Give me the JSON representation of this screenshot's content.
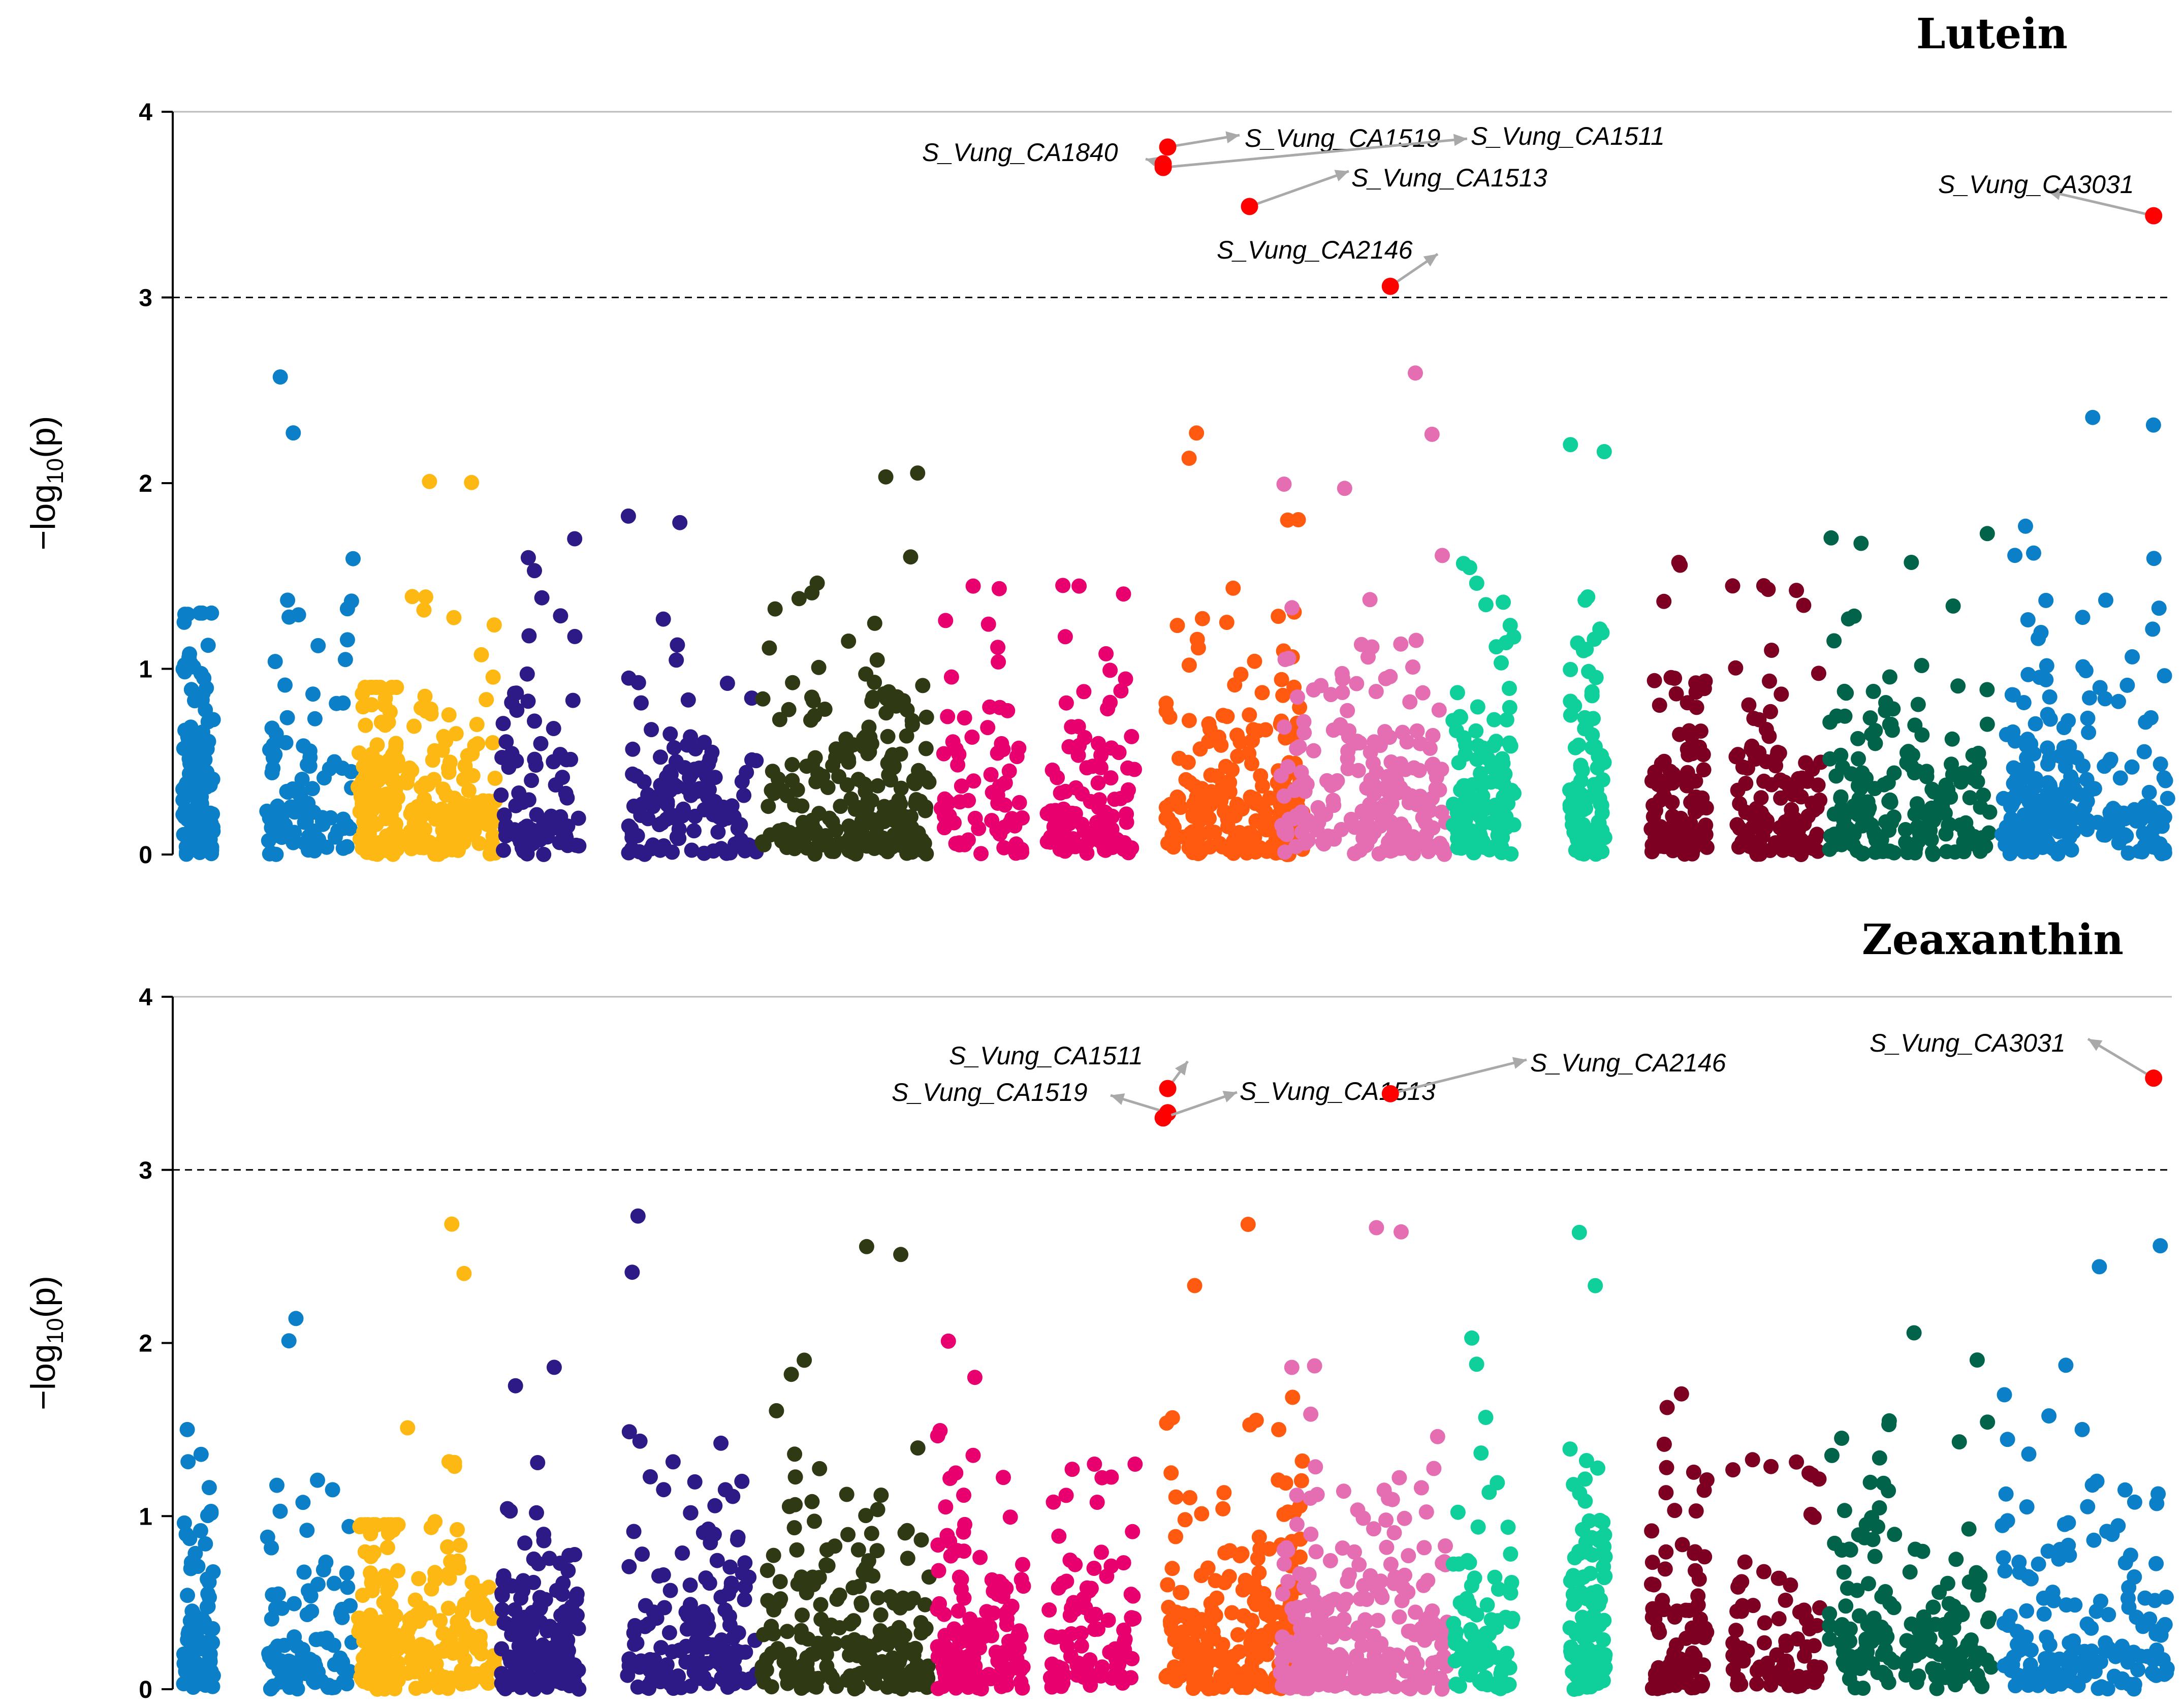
{
  "chart_data": [
    {
      "type": "scatter",
      "subtype": "manhattan",
      "title": "Lutein",
      "ylabel_prefix": "−log",
      "ylabel_sub": "10",
      "ylabel_suffix": "(p)",
      "ylabel": "−log10(p)",
      "ylim": [
        0,
        4
      ],
      "yticks": [
        "0",
        "1",
        "2",
        "3",
        "4"
      ],
      "threshold": 3,
      "n_groups": 22,
      "group_colors": [
        "#0B7FC7",
        "#0B7FC7",
        "#FDB813",
        "#FDB813",
        "#2E1A87",
        "#2E1A87",
        "#2F3A14",
        "#2F3A14",
        "#E8006E",
        "#E8006E",
        "#FF5A0F",
        "#FF5A0F",
        "#E56EB3",
        "#E56EB3",
        "#0FCF9A",
        "#0FCF9A",
        "#7D0022",
        "#7D0022",
        "#00634A",
        "#00634A",
        "#0B7FC7",
        "#0B7FC7"
      ],
      "significant": [
        {
          "label": "S_Vung_CA1840",
          "x": 10.9,
          "y": 3.72
        },
        {
          "label": "S_Vung_CA1519",
          "x": 10.95,
          "y": 3.81
        },
        {
          "label": "S_Vung_CA1511",
          "x": 10.9,
          "y": 3.7
        },
        {
          "label": "S_Vung_CA1513",
          "x": 11.85,
          "y": 3.49
        },
        {
          "label": "S_Vung_CA2146",
          "x": 13.4,
          "y": 3.06
        },
        {
          "label": "S_Vung_CA3031",
          "x": 21.8,
          "y": 3.44
        }
      ]
    },
    {
      "type": "scatter",
      "subtype": "manhattan",
      "title": "Zeaxanthin",
      "ylabel_prefix": "−log",
      "ylabel_sub": "10",
      "ylabel_suffix": "(p)",
      "ylabel": "−log10(p)",
      "ylim": [
        0,
        4
      ],
      "yticks": [
        "0",
        "1",
        "2",
        "3",
        "4"
      ],
      "threshold": 3,
      "n_groups": 22,
      "group_colors": [
        "#0B7FC7",
        "#0B7FC7",
        "#FDB813",
        "#FDB813",
        "#2E1A87",
        "#2E1A87",
        "#2F3A14",
        "#2F3A14",
        "#E8006E",
        "#E8006E",
        "#FF5A0F",
        "#FF5A0F",
        "#E56EB3",
        "#E56EB3",
        "#0FCF9A",
        "#0FCF9A",
        "#7D0022",
        "#7D0022",
        "#00634A",
        "#00634A",
        "#0B7FC7",
        "#0B7FC7"
      ],
      "significant": [
        {
          "label": "S_Vung_CA1511",
          "x": 10.95,
          "y": 3.47
        },
        {
          "label": "S_Vung_CA1519",
          "x": 10.95,
          "y": 3.33
        },
        {
          "label": "S_Vung_CA1513",
          "x": 10.9,
          "y": 3.3
        },
        {
          "label": "S_Vung_CA2146",
          "x": 13.4,
          "y": 3.44
        },
        {
          "label": "S_Vung_CA3031",
          "x": 21.8,
          "y": 3.53
        }
      ]
    }
  ]
}
